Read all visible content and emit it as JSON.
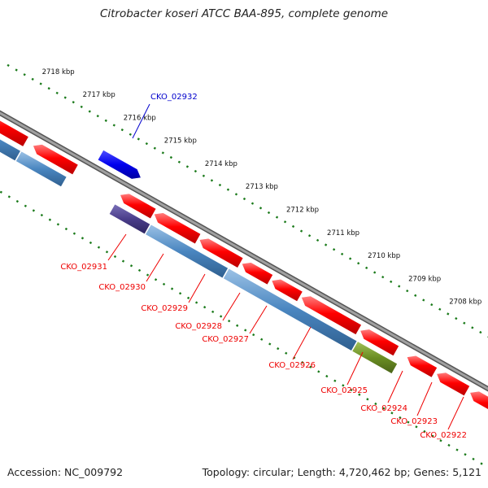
{
  "title": "Citrobacter koseri ATCC BAA-895, complete genome",
  "footer": {
    "accession": "Accession: NC_009792",
    "stats": "Topology: circular; Length: 4,720,462 bp; Genes: 5,121"
  },
  "colors": {
    "cds_forward": "#ff0000",
    "cds_reverse": "#4a86c0",
    "cds_highlight_forward": "#0000ee",
    "cds_purple": "#4a3d8a",
    "cds_olive": "#6b8e23",
    "backbone": "#808080",
    "tick": "#1a7a1a",
    "label_forward": "#0000cc",
    "label_reverse": "#ee0000"
  },
  "ruler": {
    "unit": "kbp",
    "labels": [
      "2718 kbp",
      "2717 kbp",
      "2716 kbp",
      "2715 kbp",
      "2714 kbp",
      "2713 kbp",
      "2712 kbp",
      "2711 kbp",
      "2710 kbp",
      "2709 kbp",
      "2708 kbp"
    ]
  },
  "genes": [
    {
      "label": "CKO_02932",
      "strand": "forward"
    },
    {
      "label": "CKO_02931",
      "strand": "reverse"
    },
    {
      "label": "CKO_02930",
      "strand": "reverse"
    },
    {
      "label": "CKO_02929",
      "strand": "reverse"
    },
    {
      "label": "CKO_02928",
      "strand": "reverse"
    },
    {
      "label": "CKO_02927",
      "strand": "reverse"
    },
    {
      "label": "CKO_02926",
      "strand": "reverse"
    },
    {
      "label": "CKO_02925",
      "strand": "reverse"
    },
    {
      "label": "CKO_02924",
      "strand": "reverse"
    },
    {
      "label": "CKO_02923",
      "strand": "reverse"
    },
    {
      "label": "CKO_02922",
      "strand": "reverse"
    }
  ]
}
